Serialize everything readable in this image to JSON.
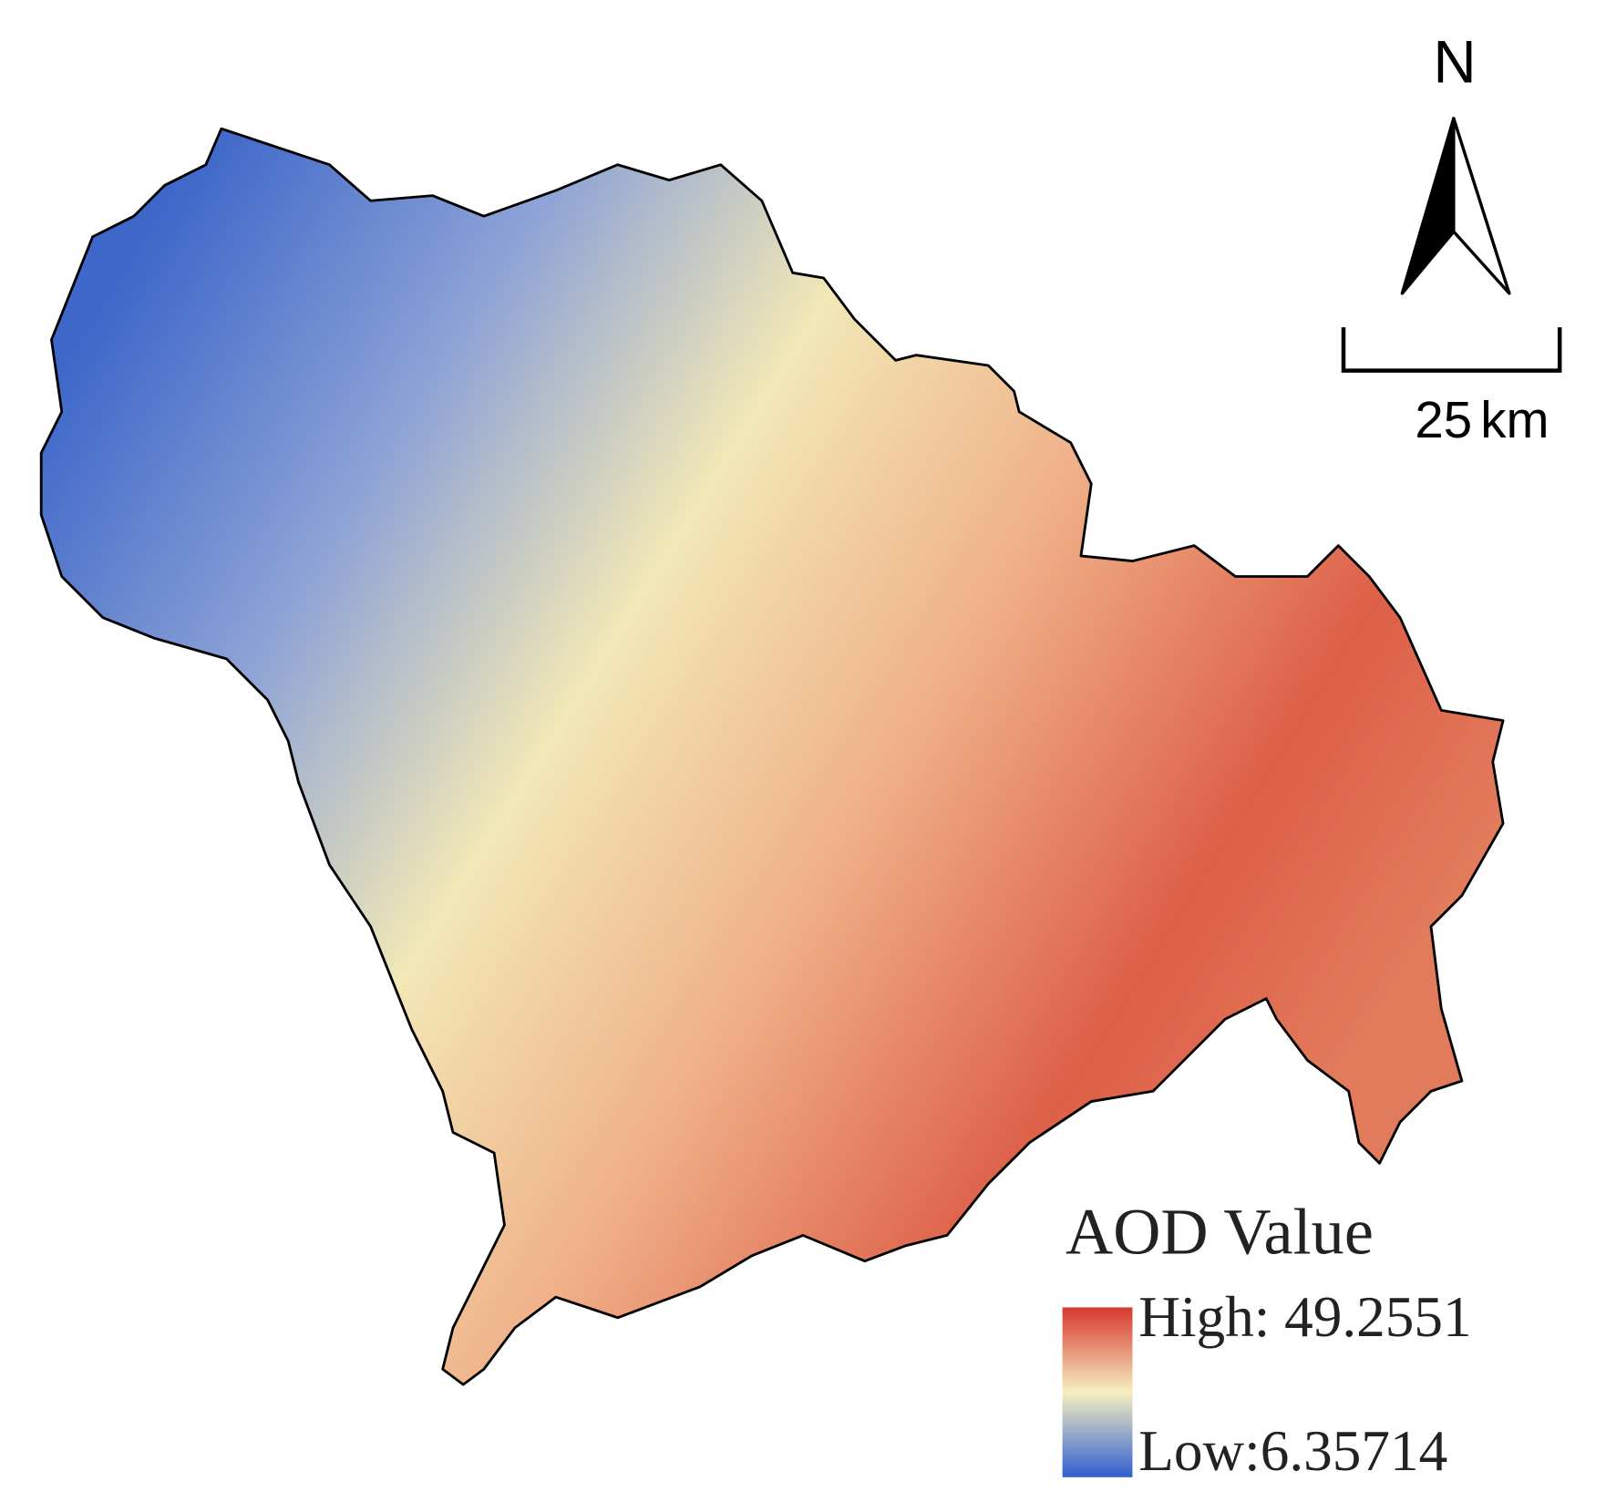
{
  "legend": {
    "title": "AOD Value",
    "high": "High: 49.2551",
    "low": "Low:6.35714"
  },
  "north_arrow": {
    "label": "N"
  },
  "scale_bar": {
    "distance": "25",
    "unit": "km"
  }
}
